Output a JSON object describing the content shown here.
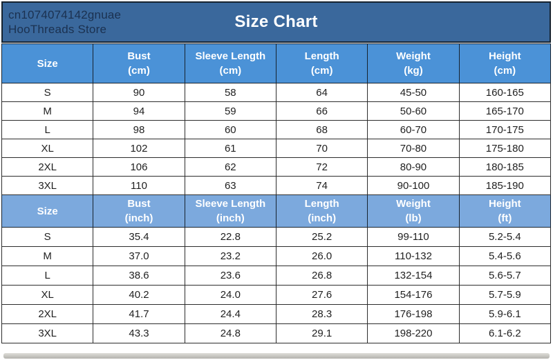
{
  "banner": {
    "store_id": "cn1074074142gnuae",
    "store_name": "HooThreads Store",
    "title": "Size Chart"
  },
  "colors": {
    "banner_bg": "#3a689c",
    "banner_text": "#1b3150",
    "title_text": "#ffffff",
    "header_cm_bg": "#4b92d7",
    "header_inch_bg": "#7ca9dd",
    "header_text": "#ffffff",
    "cell_text": "#1f1f1f",
    "border_dark": "#16222e"
  },
  "chart_data": [
    {
      "type": "table",
      "title": "Size Chart (metric)",
      "columns": [
        {
          "label": "Size",
          "unit": ""
        },
        {
          "label": "Bust",
          "unit": "(cm)"
        },
        {
          "label": "Sleeve Length",
          "unit": "(cm)"
        },
        {
          "label": "Length",
          "unit": "(cm)"
        },
        {
          "label": "Weight",
          "unit": "(kg)"
        },
        {
          "label": "Height",
          "unit": "(cm)"
        }
      ],
      "rows": [
        [
          "S",
          "90",
          "58",
          "64",
          "45-50",
          "160-165"
        ],
        [
          "M",
          "94",
          "59",
          "66",
          "50-60",
          "165-170"
        ],
        [
          "L",
          "98",
          "60",
          "68",
          "60-70",
          "170-175"
        ],
        [
          "XL",
          "102",
          "61",
          "70",
          "70-80",
          "175-180"
        ],
        [
          "2XL",
          "106",
          "62",
          "72",
          "80-90",
          "180-185"
        ],
        [
          "3XL",
          "110",
          "63",
          "74",
          "90-100",
          "185-190"
        ]
      ]
    },
    {
      "type": "table",
      "title": "Size Chart (imperial)",
      "columns": [
        {
          "label": "Size",
          "unit": ""
        },
        {
          "label": "Bust",
          "unit": "(inch)"
        },
        {
          "label": "Sleeve Length",
          "unit": "(inch)"
        },
        {
          "label": "Length",
          "unit": "(inch)"
        },
        {
          "label": "Weight",
          "unit": "(lb)"
        },
        {
          "label": "Height",
          "unit": "(ft)"
        }
      ],
      "rows": [
        [
          "S",
          "35.4",
          "22.8",
          "25.2",
          "99-110",
          "5.2-5.4"
        ],
        [
          "M",
          "37.0",
          "23.2",
          "26.0",
          "110-132",
          "5.4-5.6"
        ],
        [
          "L",
          "38.6",
          "23.6",
          "26.8",
          "132-154",
          "5.6-5.7"
        ],
        [
          "XL",
          "40.2",
          "24.0",
          "27.6",
          "154-176",
          "5.7-5.9"
        ],
        [
          "2XL",
          "41.7",
          "24.4",
          "28.3",
          "176-198",
          "5.9-6.1"
        ],
        [
          "3XL",
          "43.3",
          "24.8",
          "29.1",
          "198-220",
          "6.1-6.2"
        ]
      ]
    }
  ]
}
